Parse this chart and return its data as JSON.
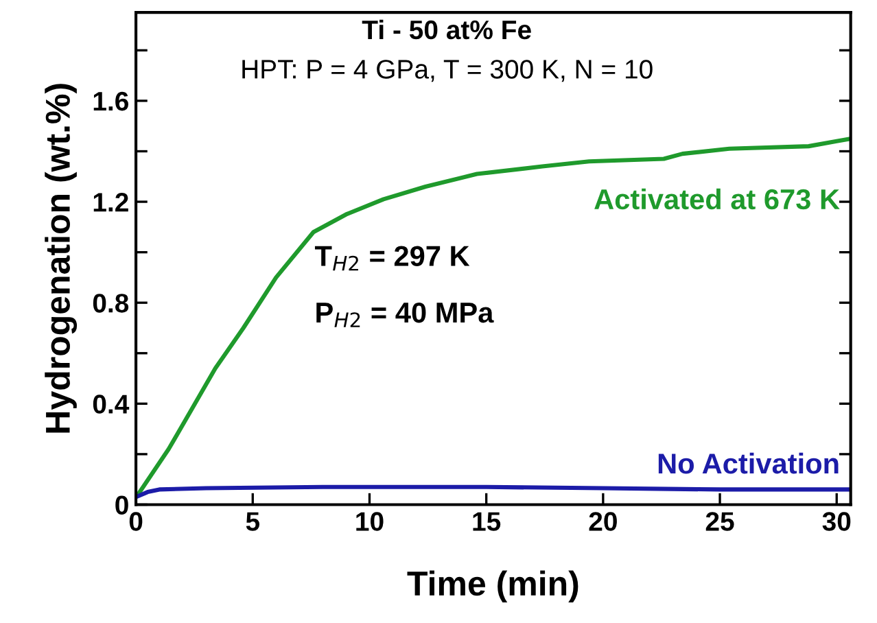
{
  "chart_data": {
    "type": "line",
    "title": "Ti - 50 at% Fe",
    "subtitle": "HPT: P = 4 GPa, T = 300 K, N = 10",
    "xlabel": "Time (min)",
    "ylabel": "Hydrogenation (wt.%)",
    "annotations": [
      "T$_{H2}$ = 297 K",
      "P$_{H2}$ = 40 MPa"
    ],
    "series": [
      {
        "name": "Activated at 673 K",
        "color": "#1f9a2c",
        "x": [
          0.09,
          1.4,
          2.4,
          3.4,
          4.6,
          6.0,
          7.6,
          9.0,
          10.6,
          12.4,
          14.6,
          17.4,
          19.4,
          22.6,
          23.4,
          25.4,
          28.8,
          30.0,
          30.6
        ],
        "values": [
          0.04,
          0.22,
          0.38,
          0.54,
          0.7,
          0.9,
          1.08,
          1.15,
          1.21,
          1.26,
          1.31,
          1.34,
          1.36,
          1.37,
          1.39,
          1.41,
          1.42,
          1.44,
          1.45
        ]
      },
      {
        "name": "No Activation",
        "color": "#1c1ca8",
        "x": [
          0,
          0.5,
          1,
          3,
          8,
          9,
          12,
          15,
          20,
          25,
          30.6
        ],
        "values": [
          0.03,
          0.05,
          0.06,
          0.065,
          0.07,
          0.07,
          0.07,
          0.07,
          0.065,
          0.06,
          0.06
        ]
      }
    ],
    "xlim": [
      0,
      30.6
    ],
    "ylim": [
      0,
      1.95
    ],
    "xticks": [
      0,
      5,
      10,
      15,
      20,
      25,
      30
    ],
    "yticks": [
      0,
      {
        "value": 0.2,
        "label": null
      },
      0.4,
      {
        "value": 0.6,
        "label": null
      },
      0.8,
      {
        "value": 1.0,
        "label": null
      },
      1.2,
      {
        "value": 1.4,
        "label": null
      },
      1.6,
      {
        "value": 1.8,
        "label": null
      }
    ],
    "grid": false,
    "legend": false,
    "marker": "none",
    "line_style": "solid"
  }
}
